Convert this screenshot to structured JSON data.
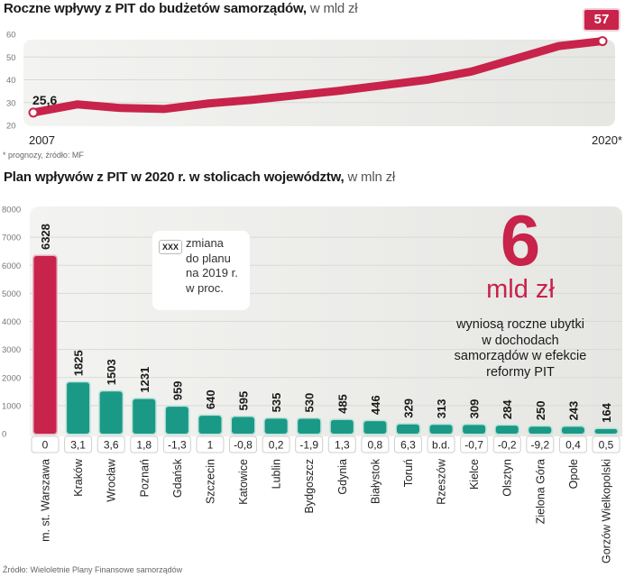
{
  "line_section": {
    "title": "Roczne wpływy z PIT do budżetów samorządów,",
    "title_unit": "w mld zł",
    "start_value_label": "25,6",
    "end_value_badge": "57",
    "note": "* prognozy, źródło: MF"
  },
  "bar_section": {
    "title": "Plan wpływów z PIT w 2020 r. w stolicach województw,",
    "title_unit": "w mln zł",
    "legend": {
      "sample": "XXX",
      "text_lines": [
        "zmiana",
        "do planu",
        "na 2019 r.",
        "w proc."
      ]
    },
    "callout": {
      "big_number": "6",
      "unit": "mld zł",
      "desc_lines": [
        "wyniosą roczne ubytki",
        "w dochodach",
        "samorządów w efekcie",
        "reformy PIT"
      ]
    },
    "source": "Źródło: Wieloletnie Plany Finansowe samorządów"
  },
  "colors": {
    "accent_red": "#c8234a",
    "bar_teal": "#1a9a86",
    "panel_bg": "#ececea"
  },
  "chart_data": [
    {
      "type": "line",
      "title": "Roczne wpływy z PIT do budżetów samorządów, w mld zł",
      "x": [
        2007,
        2008,
        2009,
        2010,
        2011,
        2012,
        2013,
        2014,
        2015,
        2016,
        2017,
        2018,
        2019,
        2020
      ],
      "x_tick_labels": [
        "2007",
        "2020*"
      ],
      "series": [
        {
          "name": "Wpływy z PIT",
          "values": [
            25.6,
            29.2,
            27.6,
            27.2,
            29.6,
            31.2,
            33.2,
            35.2,
            37.6,
            40.0,
            43.6,
            49.2,
            54.8,
            57.0
          ]
        }
      ],
      "annotations": [
        "25,6",
        "57"
      ],
      "ylim": [
        20,
        60
      ],
      "yticks": [
        20,
        30,
        40,
        50,
        60
      ],
      "xlabel": "",
      "ylabel": "",
      "grid": true,
      "footnote": "* prognozy, źródło: MF"
    },
    {
      "type": "bar",
      "title": "Plan wpływów z PIT w 2020 r. w stolicach województw, w mln zł",
      "categories": [
        "m. st. Warszawa",
        "Kraków",
        "Wrocław",
        "Poznań",
        "Gdańsk",
        "Szczecin",
        "Katowice",
        "Lublin",
        "Bydgoszcz",
        "Gdynia",
        "Białystok",
        "Toruń",
        "Rzeszów",
        "Kielce",
        "Olsztyn",
        "Zielona Góra",
        "Opole",
        "Gorzów Wielkopolski"
      ],
      "values": [
        6328,
        1825,
        1503,
        1231,
        959,
        640,
        595,
        535,
        530,
        485,
        446,
        329,
        313,
        309,
        284,
        250,
        243,
        164
      ],
      "value_labels": [
        "6328",
        "1825",
        "1503",
        "1231",
        "959",
        "640",
        "595",
        "535",
        "530",
        "485",
        "446",
        "329",
        "313",
        "309",
        "284",
        "250",
        "243",
        "164"
      ],
      "change_vs_2019_pct": [
        "0",
        "3,1",
        "3,6",
        "1,8",
        "-1,3",
        "1",
        "-0,8",
        "0,2",
        "-1,9",
        "1,3",
        "0,8",
        "6,3",
        "b.d.",
        "-0,7",
        "-0,2",
        "-9,2",
        "0,4",
        "0,5"
      ],
      "highlight_category": "m. st. Warszawa",
      "ylim": [
        0,
        8000
      ],
      "yticks": [
        0,
        1000,
        2000,
        3000,
        4000,
        5000,
        6000,
        7000,
        8000
      ],
      "xlabel": "",
      "ylabel": "",
      "grid": true,
      "legend": "zmiana do planu na 2019 r. w proc.",
      "source": "Źródło: Wieloletnie Plany Finansowe samorządów"
    }
  ]
}
